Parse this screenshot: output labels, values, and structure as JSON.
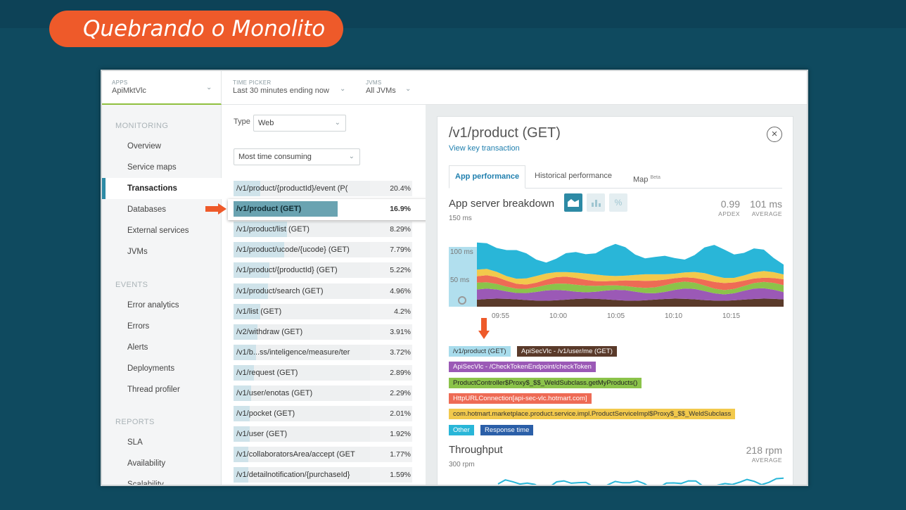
{
  "slide": {
    "title": "Quebrando o Monolito"
  },
  "topbar": {
    "apps_label": "APPS",
    "apps_value": "ApiMktVlc",
    "time_label": "TIME PICKER",
    "time_value": "Last 30 minutes ending now",
    "jvms_label": "JVMS",
    "jvms_value": "All JVMs"
  },
  "sidebar": {
    "monitoring_header": "MONITORING",
    "monitoring": [
      "Overview",
      "Service maps",
      "Transactions",
      "Databases",
      "External services",
      "JVMs"
    ],
    "events_header": "EVENTS",
    "events": [
      "Error analytics",
      "Errors",
      "Alerts",
      "Deployments",
      "Thread profiler"
    ],
    "reports_header": "REPORTS",
    "reports": [
      "SLA",
      "Availability",
      "Scalability"
    ]
  },
  "filters": {
    "type_label": "Type",
    "type_value": "Web",
    "sort_value": "Most time consuming"
  },
  "transactions": [
    {
      "name": "/v1/product/{productId}/event (P(",
      "pct": "20.4%",
      "fill": 0.2
    },
    {
      "name": "/v1/product (GET)",
      "pct": "16.9%",
      "fill": 0.78
    },
    {
      "name": "/v1/product/list (GET)",
      "pct": "8.29%",
      "fill": 0.4
    },
    {
      "name": "/v1/product/ucode/{ucode} (GET)",
      "pct": "7.79%",
      "fill": 0.38
    },
    {
      "name": "/v1/product/{productId} (GET)",
      "pct": "5.22%",
      "fill": 0.27
    },
    {
      "name": "/v1/product/search (GET)",
      "pct": "4.96%",
      "fill": 0.26
    },
    {
      "name": "/v1/list (GET)",
      "pct": "4.2%",
      "fill": 0.2
    },
    {
      "name": "/v2/withdraw (GET)",
      "pct": "3.91%",
      "fill": 0.18
    },
    {
      "name": "/v1/b...ss/inteligence/measure/ter",
      "pct": "3.72%",
      "fill": 0.17
    },
    {
      "name": "/v1/request (GET)",
      "pct": "2.89%",
      "fill": 0.15
    },
    {
      "name": "/v1/user/enotas (GET)",
      "pct": "2.29%",
      "fill": 0.13
    },
    {
      "name": "/v1/pocket (GET)",
      "pct": "2.01%",
      "fill": 0.12
    },
    {
      "name": "/v1/user (GET)",
      "pct": "1.92%",
      "fill": 0.12
    },
    {
      "name": "/v1/collaboratorsArea/accept (GET",
      "pct": "1.77%",
      "fill": 0.11
    },
    {
      "name": "/v1/detailnotification/{purchaseId}",
      "pct": "1.59%",
      "fill": 0.11
    }
  ],
  "detail": {
    "title": "/v1/product (GET)",
    "link": "View key transaction",
    "close_icon": "close-circle-icon",
    "tabs": [
      "App performance",
      "Historical performance",
      "Map"
    ],
    "map_badge": "Beta",
    "breakdown_title": "App server breakdown",
    "apdex_value": "0.99",
    "apdex_label": "APDEX",
    "avg_value": "101 ms",
    "avg_label": "AVERAGE",
    "y_max": "150 ms",
    "y_mid": "100 ms",
    "y_low": "50 ms",
    "x_ticks": [
      "09:55",
      "10:00",
      "10:05",
      "10:10",
      "10:15"
    ],
    "legend": [
      {
        "label": "/v1/product (GET)",
        "bg": "#a8dcec",
        "color": "#333"
      },
      {
        "label": "ApiSecVlc - /v1/user/me (GET)",
        "bg": "#5a3a2a",
        "color": "#fff"
      },
      {
        "label": "ApiSecVlc - /CheckTokenEndpoint/checkToken",
        "bg": "#9b59b6",
        "color": "#fff"
      },
      {
        "label": "ProductController$Proxy$_$$_WeldSubclass.getMyProducts()",
        "bg": "#8bc34a",
        "color": "#222"
      },
      {
        "label": "HttpURLConnection[api-sec-vlc.hotmart.com]",
        "bg": "#ee6b55",
        "color": "#fff"
      },
      {
        "label": "com.hotmart.marketplace.product.service.impl.ProductServiceImpl$Proxy$_$$_WeldSubclass",
        "bg": "#f2c94c",
        "color": "#333"
      },
      {
        "label": "Other",
        "bg": "#29b6d8",
        "color": "#fff"
      },
      {
        "label": "Response time",
        "bg": "#2b5fa8",
        "color": "#fff"
      }
    ],
    "throughput_title": "Throughput",
    "throughput_value": "218 rpm",
    "throughput_label": "AVERAGE",
    "throughput_y": "300 rpm",
    "colors": {
      "other": "#29b6d8",
      "app": "#a8dcec",
      "brown": "#5a3a2a",
      "purple": "#9b59b6",
      "green": "#8bc34a",
      "red": "#ee6b55",
      "yellow": "#f2c94c",
      "accent": "#1f7fae",
      "arrow": "#ee5a2a"
    }
  }
}
